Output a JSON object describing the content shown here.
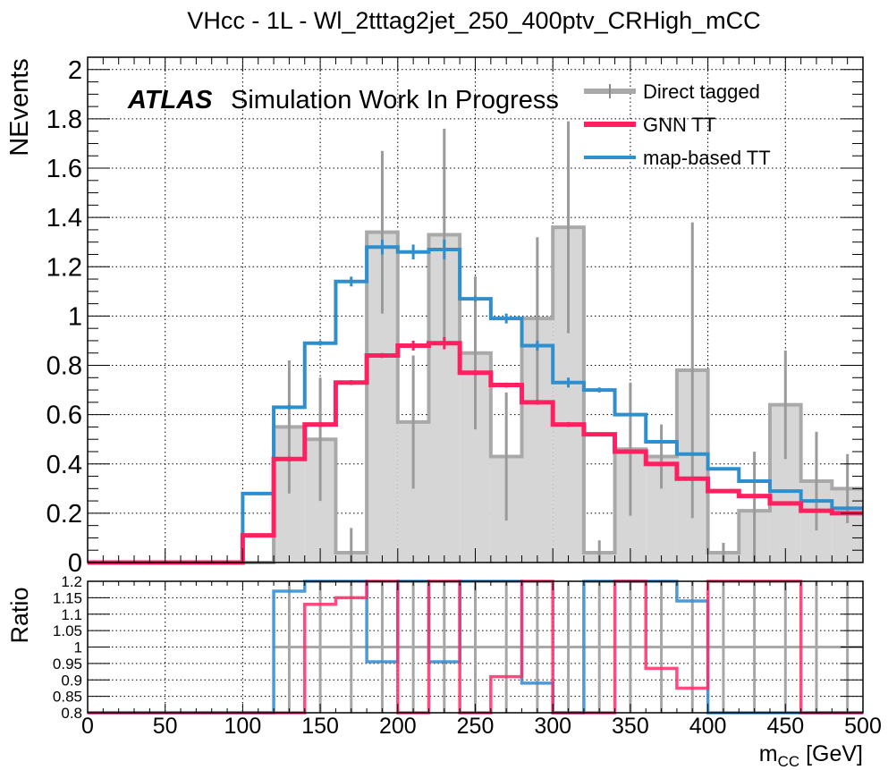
{
  "chart_data": [
    {
      "type": "histogram",
      "title": "VHcc - 1L - Wl_2tttag2jet_250_400ptv_CRHigh_mCC",
      "ylabel": "NEvents",
      "label_bold": "ATLAS",
      "label_text": "Simulation Work In Progress",
      "xlim": [
        0,
        500
      ],
      "ylim": [
        0,
        2.05
      ],
      "yticks": [
        "0",
        "0.2",
        "0.4",
        "0.6",
        "0.8",
        "1",
        "1.2",
        "1.4",
        "1.6",
        "1.8",
        "2"
      ],
      "grid": true,
      "legend_position": "top-right",
      "bin_edges": [
        0,
        20,
        40,
        60,
        80,
        100,
        120,
        140,
        160,
        180,
        200,
        220,
        240,
        260,
        280,
        300,
        320,
        340,
        360,
        380,
        400,
        420,
        440,
        460,
        480,
        500
      ],
      "series": [
        {
          "name": "Direct tagged",
          "color": "#a0a0a0",
          "style": "filled",
          "values": [
            0,
            0,
            0,
            0,
            0,
            0,
            0.55,
            0.5,
            0.04,
            1.34,
            0.57,
            1.33,
            0.85,
            0.43,
            0.99,
            1.36,
            0.04,
            0.46,
            0.43,
            0.78,
            0.04,
            0.21,
            0.64,
            0.33,
            0.3
          ],
          "errors": [
            0,
            0,
            0,
            0,
            0,
            0,
            0.27,
            0.25,
            0.1,
            0.33,
            0.27,
            0.43,
            0.31,
            0.26,
            0.33,
            0.43,
            0.05,
            0.27,
            0.13,
            0.6,
            0.04,
            0.24,
            0.22,
            0.2,
            0.14
          ]
        },
        {
          "name": "GNN TT",
          "color": "#ff2060",
          "style": "line",
          "values": [
            0,
            0,
            0,
            0,
            0,
            0.11,
            0.42,
            0.56,
            0.73,
            0.84,
            0.88,
            0.89,
            0.77,
            0.72,
            0.65,
            0.56,
            0.52,
            0.45,
            0.4,
            0.34,
            0.29,
            0.27,
            0.24,
            0.21,
            0.2
          ],
          "errors": [
            0,
            0,
            0,
            0,
            0,
            0.003,
            0.01,
            0.01,
            0.01,
            0.01,
            0.02,
            0.025,
            0.01,
            0.01,
            0.01,
            0.01,
            0.005,
            0.005,
            0.005,
            0.005,
            0.005,
            0.005,
            0.005,
            0.005,
            0.005
          ]
        },
        {
          "name": "map-based TT",
          "color": "#2f8fcc",
          "style": "line",
          "values": [
            0,
            0,
            0,
            0,
            0,
            0.28,
            0.63,
            0.89,
            1.14,
            1.28,
            1.26,
            1.27,
            1.07,
            0.99,
            0.88,
            0.73,
            0.7,
            0.6,
            0.49,
            0.44,
            0.38,
            0.33,
            0.29,
            0.25,
            0.22
          ],
          "errors": [
            0,
            0,
            0,
            0,
            0,
            0.005,
            0.01,
            0.01,
            0.02,
            0.03,
            0.03,
            0.04,
            0.01,
            0.02,
            0.02,
            0.02,
            0.01,
            0.005,
            0.005,
            0.005,
            0.005,
            0.005,
            0.005,
            0.005,
            0.005
          ]
        }
      ]
    },
    {
      "type": "ratio",
      "ylabel": "Ratio",
      "xlabel_main": "m",
      "xlabel_sub": "CC",
      "xlabel_unit": " [GeV]",
      "xlim": [
        0,
        500
      ],
      "ylim": [
        0.8,
        1.2
      ],
      "xticks": [
        "0",
        "50",
        "100",
        "150",
        "200",
        "250",
        "300",
        "350",
        "400",
        "450",
        "500"
      ],
      "yticks": [
        "0.8",
        "0.85",
        "0.9",
        "0.95",
        "1",
        "1.05",
        "1.1",
        "1.15",
        "1.2"
      ],
      "grid": true,
      "series": [
        {
          "name": "Direct tagged",
          "color": "#a0a0a0",
          "values": [
            null,
            null,
            null,
            null,
            null,
            null,
            1,
            1,
            1,
            1,
            1,
            1,
            1,
            1,
            1,
            1,
            1,
            1,
            1,
            1,
            1,
            1,
            1,
            1,
            1
          ],
          "errors": [
            0,
            0,
            0,
            0,
            0,
            0,
            0.5,
            0.5,
            1.0,
            0.25,
            0.47,
            0.32,
            0.36,
            0.6,
            0.33,
            0.32,
            1.0,
            0.6,
            0.3,
            0.77,
            1.0,
            1.0,
            0.35,
            0.6,
            0.45
          ]
        },
        {
          "name": "map-based TT",
          "color": "#3c8fd0",
          "values": [
            0.8,
            0.8,
            0.8,
            0.8,
            0.8,
            0.8,
            1.17,
            1.2,
            1.2,
            0.955,
            1.2,
            0.955,
            1.2,
            1.2,
            0.89,
            0.8,
            1.2,
            1.2,
            1.2,
            1.14,
            0.8,
            0.8,
            0.8,
            0.8,
            0.8
          ]
        },
        {
          "name": "GNN TT",
          "color": "#ff2c6a",
          "values": [
            0.8,
            0.8,
            0.8,
            0.8,
            0.8,
            0.8,
            0.8,
            1.13,
            1.15,
            1.2,
            0.8,
            1.2,
            0.8,
            0.91,
            1.2,
            0.8,
            0.8,
            1.2,
            0.935,
            0.875,
            1.2,
            1.2,
            1.2,
            0.8,
            0.8
          ]
        }
      ]
    }
  ]
}
